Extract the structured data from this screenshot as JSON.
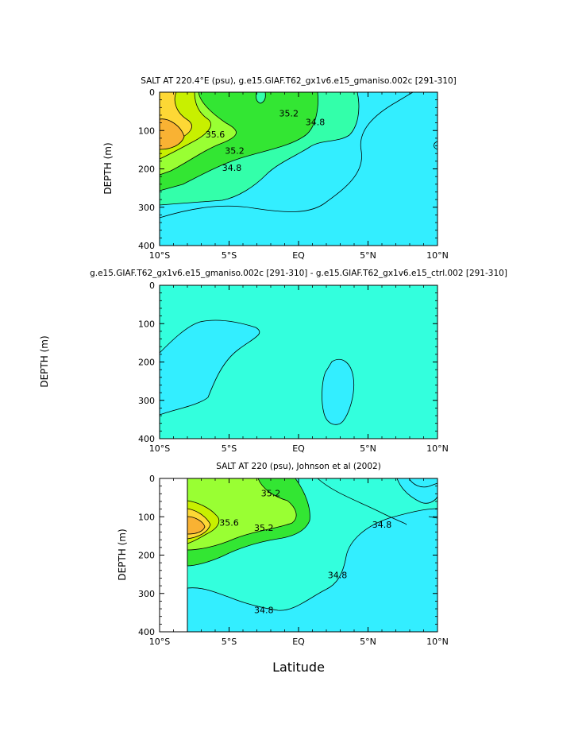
{
  "chart_data": [
    {
      "type": "contour",
      "title": "SALT AT 220.4°E (psu), g.e15.GIAF.T62_gx1v6.e15_gmaniso.002c [291-310]",
      "ylabel": "DEPTH (m)",
      "xlabel": "",
      "x_ticks": [
        "10°S",
        "5°S",
        "EQ",
        "5°N",
        "10°N"
      ],
      "x_tick_values": [
        -10,
        -5,
        0,
        5,
        10
      ],
      "y_ticks": [
        "0",
        "100",
        "200",
        "300",
        "400"
      ],
      "y_tick_values": [
        0,
        100,
        200,
        300,
        400
      ],
      "xlim": [
        -10,
        10
      ],
      "ylim": [
        400,
        0
      ],
      "contour_labels": [
        {
          "text": "35.6",
          "x": -6.0,
          "y": 110
        },
        {
          "text": "35.2",
          "x": -4.6,
          "y": 152
        },
        {
          "text": "34.8",
          "x": -4.8,
          "y": 197
        },
        {
          "text": "35.2",
          "x": -0.7,
          "y": 55
        },
        {
          "text": "34.8",
          "x": 1.2,
          "y": 78
        }
      ],
      "fill_colors": [
        "#fdd835",
        "#f9b233",
        "#c8f000",
        "#99ff33",
        "#33e633",
        "#33ffaa",
        "#33ffdd",
        "#33eeff"
      ]
    },
    {
      "type": "contour",
      "title": "g.e15.GIAF.T62_gx1v6.e15_gmaniso.002c [291-310] - g.e15.GIAF.T62_gx1v6.e15_ctrl.002 [291-310]",
      "ylabel": "DEPTH (m)",
      "xlabel": "",
      "x_ticks": [
        "10°S",
        "5°S",
        "EQ",
        "5°N",
        "10°N"
      ],
      "x_tick_values": [
        -10,
        -5,
        0,
        5,
        10
      ],
      "y_ticks": [
        "0",
        "100",
        "200",
        "300",
        "400"
      ],
      "y_tick_values": [
        0,
        100,
        200,
        300,
        400
      ],
      "xlim": [
        -10,
        10
      ],
      "ylim": [
        400,
        0
      ],
      "contour_labels": [],
      "fill_colors": [
        "#33ffdd",
        "#33eeff"
      ]
    },
    {
      "type": "contour",
      "title": "SALT AT 220 (psu), Johnson et al (2002)",
      "ylabel": "DEPTH (m)",
      "xlabel": "Latitude",
      "x_ticks": [
        "10°S",
        "5°S",
        "EQ",
        "5°N",
        "10°N"
      ],
      "x_tick_values": [
        -10,
        -5,
        0,
        5,
        10
      ],
      "y_ticks": [
        "0",
        "100",
        "200",
        "300",
        "400"
      ],
      "y_tick_values": [
        0,
        100,
        200,
        300,
        400
      ],
      "xlim": [
        -10,
        10
      ],
      "ylim": [
        400,
        0
      ],
      "data_start_lat": -8,
      "contour_labels": [
        {
          "text": "35.2",
          "x": -2.0,
          "y": 38
        },
        {
          "text": "35.6",
          "x": -5.0,
          "y": 115
        },
        {
          "text": "35.2",
          "x": -2.5,
          "y": 128
        },
        {
          "text": "34.8",
          "x": 6.0,
          "y": 120
        },
        {
          "text": "34.8",
          "x": 2.8,
          "y": 252
        },
        {
          "text": "34.8",
          "x": -2.5,
          "y": 343
        }
      ],
      "fill_colors": [
        "#f9b233",
        "#fdd835",
        "#c8f000",
        "#99ff33",
        "#33e633",
        "#33ffaa",
        "#33ffdd",
        "#33eeff"
      ]
    }
  ]
}
